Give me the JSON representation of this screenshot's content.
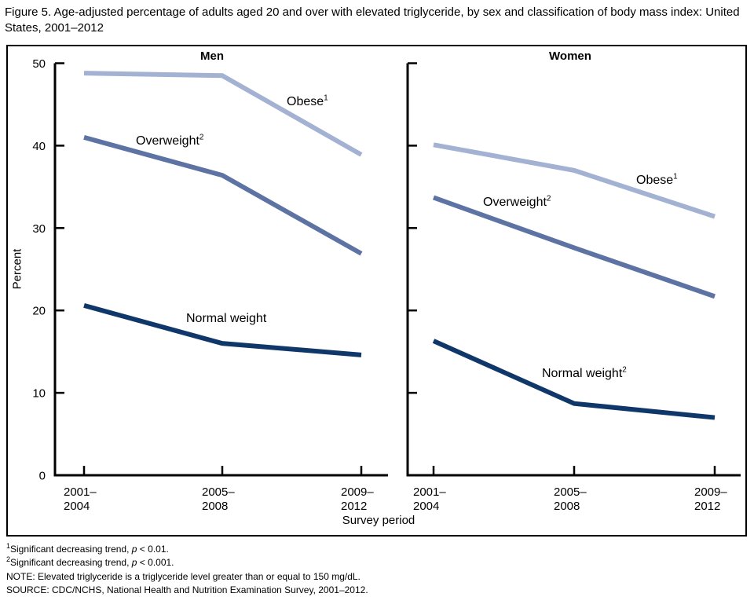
{
  "figure": {
    "title": "Figure 5. Age-adjusted percentage of adults aged 20 and over with elevated triglyceride, by sex and classification of body mass index: United States, 2001–2012"
  },
  "chart_data": {
    "type": "line",
    "categories": [
      [
        "2001–",
        "2004"
      ],
      [
        "2005–",
        "2008"
      ],
      [
        "2009–",
        "2012"
      ]
    ],
    "xlabel": "Survey period",
    "ylabel": "Percent",
    "ylim": [
      0,
      50
    ],
    "yticks": [
      0,
      10,
      20,
      30,
      40,
      50
    ],
    "grid": "off",
    "legend": "inline-labels",
    "panels": [
      {
        "title": "Men",
        "series": [
          {
            "id": "obese",
            "label": "Obese",
            "sup": "1",
            "color": "#a3b2d3",
            "values": [
              48.8,
              48.5,
              38.9
            ]
          },
          {
            "id": "overweight",
            "label": "Overweight",
            "sup": "2",
            "color": "#5d73a3",
            "values": [
              41.0,
              36.4,
              26.9
            ]
          },
          {
            "id": "normal-weight",
            "label": "Normal weight",
            "sup": "",
            "color": "#103769",
            "values": [
              20.6,
              16.0,
              14.6
            ]
          }
        ]
      },
      {
        "title": "Women",
        "series": [
          {
            "id": "obese",
            "label": "Obese",
            "sup": "1",
            "color": "#a3b2d3",
            "values": [
              40.1,
              37.0,
              31.4
            ]
          },
          {
            "id": "overweight",
            "label": "Overweight",
            "sup": "2",
            "color": "#5d73a3",
            "values": [
              33.7,
              27.6,
              21.7
            ]
          },
          {
            "id": "normal-weight",
            "label": "Normal weight",
            "sup": "2",
            "color": "#103769",
            "values": [
              16.3,
              8.7,
              7.0
            ]
          }
        ]
      }
    ]
  },
  "footnotes": [
    {
      "sup": "1",
      "before": "Significant decreasing trend, ",
      "italic": "p",
      "after": " < 0.01."
    },
    {
      "sup": "2",
      "before": "Significant decreasing trend, ",
      "italic": "p",
      "after": " < 0.001."
    },
    {
      "text": "NOTE: Elevated triglyceride is a triglyceride level greater than or equal to 150 mg/dL."
    },
    {
      "text": "SOURCE: CDC/NCHS, National Health and Nutrition Examination Survey, 2001–2012."
    }
  ]
}
